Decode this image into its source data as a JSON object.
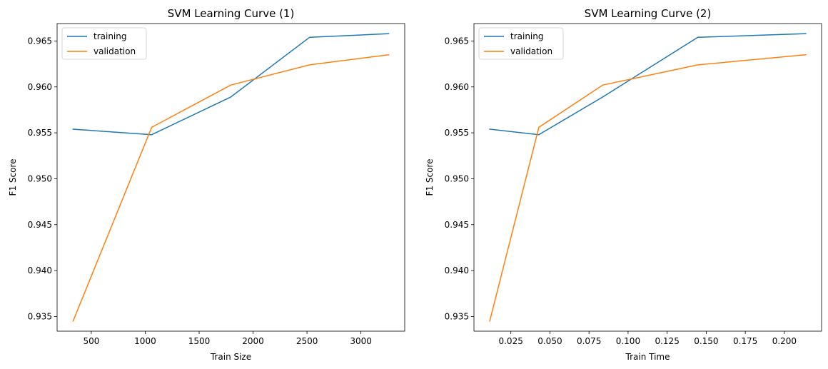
{
  "chart_data": [
    {
      "type": "line",
      "title": "SVM Learning Curve (1)",
      "xlabel": "Train Size",
      "ylabel": "F1 Score",
      "x": [
        331,
        1060,
        1793,
        2524,
        3258
      ],
      "series": [
        {
          "name": "training",
          "color": "#1f77b4",
          "values": [
            0.9554,
            0.9548,
            0.9589,
            0.9654,
            0.9658
          ]
        },
        {
          "name": "validation",
          "color": "#ff7f0e",
          "values": [
            0.9345,
            0.9556,
            0.9602,
            0.9624,
            0.9635
          ]
        }
      ],
      "xlim": [
        183,
        3406
      ],
      "ylim": [
        0.9334,
        0.9669
      ],
      "xticks": [
        500,
        1000,
        1500,
        2000,
        2500,
        3000
      ],
      "xtick_labels": [
        "500",
        "1000",
        "1500",
        "2000",
        "2500",
        "3000"
      ],
      "yticks": [
        0.935,
        0.94,
        0.945,
        0.95,
        0.955,
        0.96,
        0.965
      ],
      "ytick_labels": [
        "0.935",
        "0.940",
        "0.945",
        "0.950",
        "0.955",
        "0.960",
        "0.965"
      ],
      "legend": "top-left",
      "grid": false
    },
    {
      "type": "line",
      "title": "SVM Learning Curve (2)",
      "xlabel": "Train Time",
      "ylabel": "F1 Score",
      "x": [
        0.0115,
        0.0429,
        0.0838,
        0.1446,
        0.2137
      ],
      "series": [
        {
          "name": "training",
          "color": "#1f77b4",
          "values": [
            0.9554,
            0.9548,
            0.9589,
            0.9654,
            0.9658
          ]
        },
        {
          "name": "validation",
          "color": "#ff7f0e",
          "values": [
            0.9345,
            0.9556,
            0.9602,
            0.9624,
            0.9635
          ]
        }
      ],
      "xlim": [
        0.0014,
        0.2238
      ],
      "ylim": [
        0.9334,
        0.9669
      ],
      "xticks": [
        0.025,
        0.05,
        0.075,
        0.1,
        0.125,
        0.15,
        0.175,
        0.2
      ],
      "xtick_labels": [
        "0.025",
        "0.050",
        "0.075",
        "0.100",
        "0.125",
        "0.150",
        "0.175",
        "0.200"
      ],
      "yticks": [
        0.935,
        0.94,
        0.945,
        0.95,
        0.955,
        0.96,
        0.965
      ],
      "ytick_labels": [
        "0.935",
        "0.940",
        "0.945",
        "0.950",
        "0.955",
        "0.960",
        "0.965"
      ],
      "legend": "top-left",
      "grid": false
    }
  ]
}
